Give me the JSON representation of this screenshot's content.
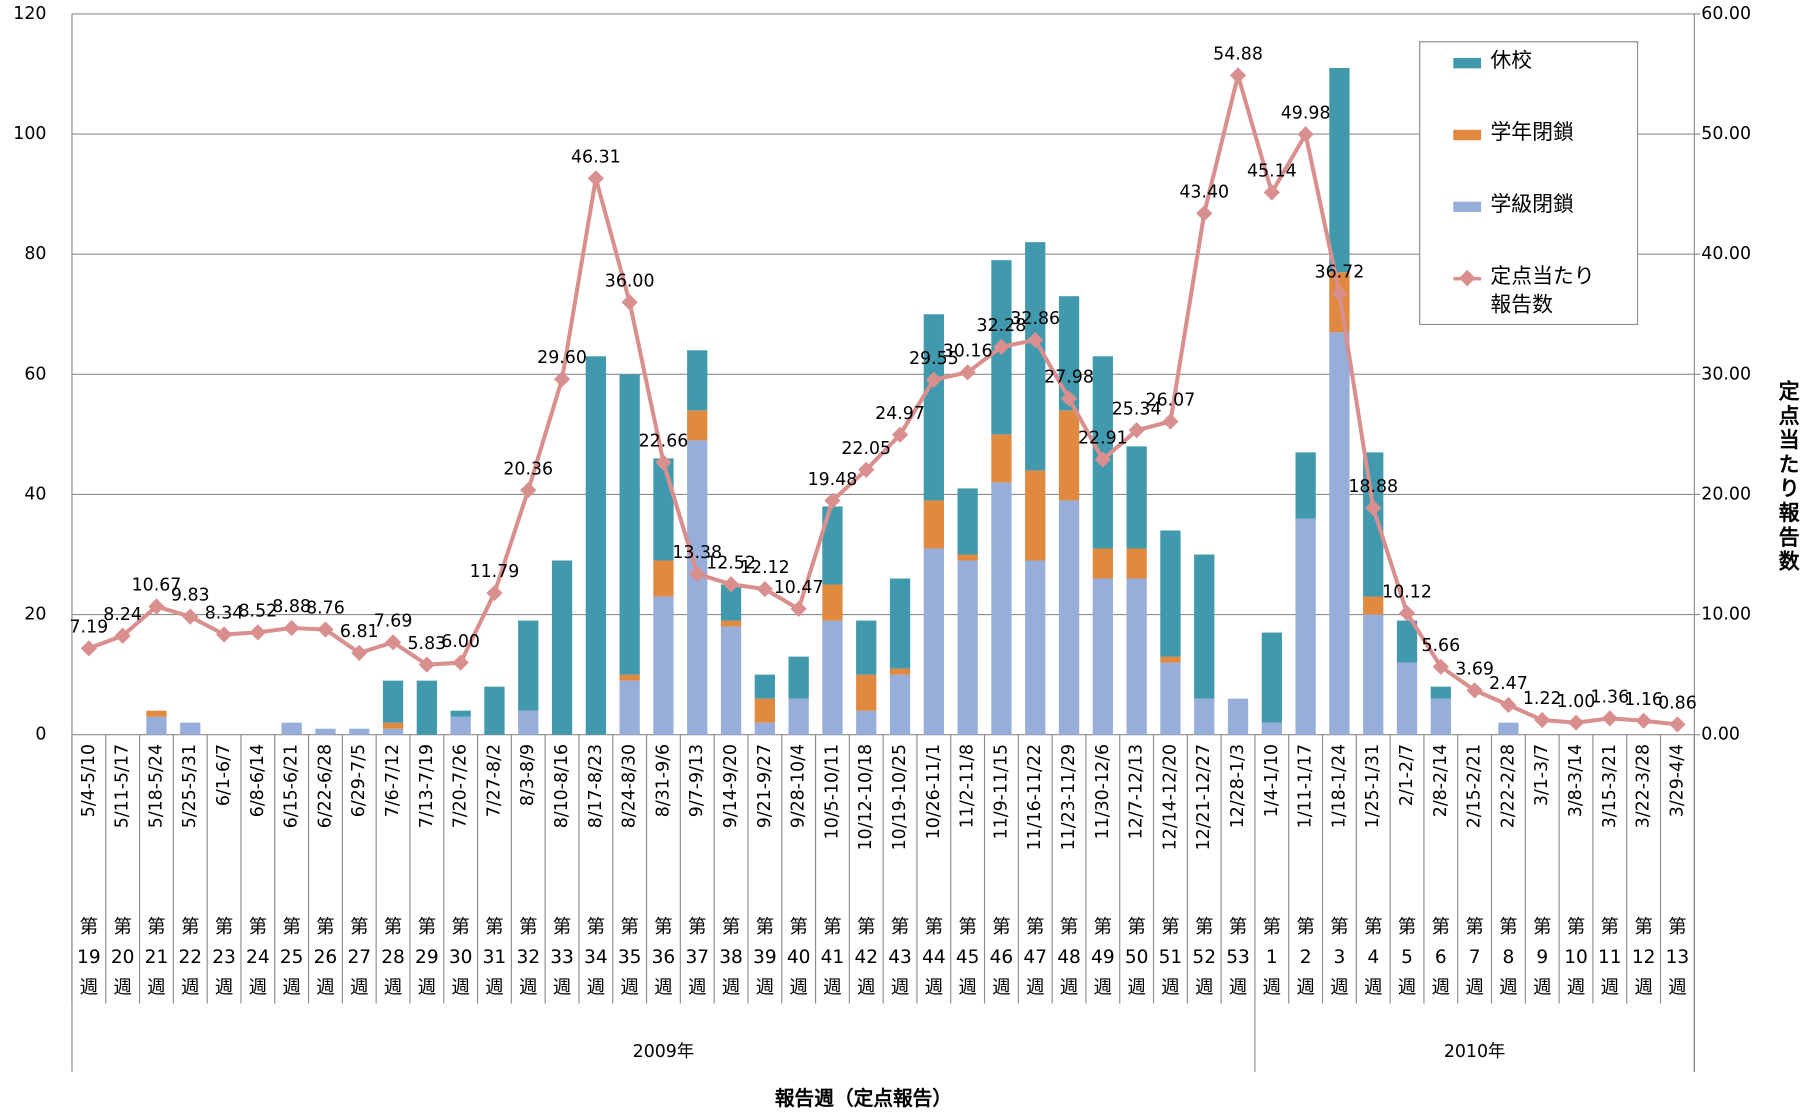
{
  "chart_data": {
    "type": "bar_line",
    "categories": [
      "5/4-5/10",
      "5/11-5/17",
      "5/18-5/24",
      "5/25-5/31",
      "6/1-6/7",
      "6/8-6/14",
      "6/15-6/21",
      "6/22-6/28",
      "6/29-7/5",
      "7/6-7/12",
      "7/13-7/19",
      "7/20-7/26",
      "7/27-8/2",
      "8/3-8/9",
      "8/10-8/16",
      "8/17-8/23",
      "8/24-8/30",
      "8/31-9/6",
      "9/7-9/13",
      "9/14-9/20",
      "9/21-9/27",
      "9/28-10/4",
      "10/5-10/11",
      "10/12-10/18",
      "10/19-10/25",
      "10/26-11/1",
      "11/2-11/8",
      "11/9-11/15",
      "11/16-11/22",
      "11/23-11/29",
      "11/30-12/6",
      "12/7-12/13",
      "12/14-12/20",
      "12/21-12/27",
      "12/28-1/3",
      "1/4-1/10",
      "1/11-1/17",
      "1/18-1/24",
      "1/25-1/31",
      "2/1-2/7",
      "2/8-2/14",
      "2/15-2/21",
      "2/22-2/28",
      "3/1-3/7",
      "3/8-3/14",
      "3/15-3/21",
      "3/22-3/28",
      "3/29-4/4"
    ],
    "weeks": [
      "第19週",
      "第20週",
      "第21週",
      "第22週",
      "第23週",
      "第24週",
      "第25週",
      "第26週",
      "第27週",
      "第28週",
      "第29週",
      "第30週",
      "第31週",
      "第32週",
      "第33週",
      "第34週",
      "第35週",
      "第36週",
      "第37週",
      "第38週",
      "第39週",
      "第40週",
      "第41週",
      "第42週",
      "第43週",
      "第44週",
      "第45週",
      "第46週",
      "第47週",
      "第48週",
      "第49週",
      "第50週",
      "第51週",
      "第52週",
      "第53週",
      "第1週",
      "第2週",
      "第3週",
      "第4週",
      "第5週",
      "第6週",
      "第7週",
      "第8週",
      "第9週",
      "第10週",
      "第11週",
      "第12週",
      "第13週"
    ],
    "x_groups": [
      "2009年",
      "2010年"
    ],
    "xlabel": "報告週（定点報告）",
    "y2label": "定点当たり報告数",
    "ylim": [
      0,
      120
    ],
    "yticks": [
      0,
      20,
      40,
      60,
      80,
      100,
      120
    ],
    "y2lim": [
      0,
      60
    ],
    "y2ticks": [
      {
        "value": 0,
        "label": "0.00"
      },
      {
        "value": 10,
        "label": "10.00"
      },
      {
        "value": 20,
        "label": "20.00"
      },
      {
        "value": 30,
        "label": "30.00"
      },
      {
        "value": 40,
        "label": "40.00"
      },
      {
        "value": 50,
        "label": "50.00"
      },
      {
        "value": 60,
        "label": "60.00"
      }
    ],
    "grid": true,
    "legend": "upper right",
    "series": [
      {
        "name": "休校",
        "type": "bar",
        "color": "#4199ae",
        "values": [
          0,
          0,
          0,
          0,
          0,
          0,
          0,
          0,
          0,
          7,
          9,
          1,
          8,
          15,
          29,
          63,
          50,
          17,
          10,
          6,
          4,
          7,
          13,
          9,
          15,
          31,
          11,
          29,
          38,
          19,
          32,
          17,
          21,
          24,
          0,
          15,
          11,
          34,
          24,
          7,
          2,
          0,
          0,
          0,
          0,
          0,
          0,
          0
        ]
      },
      {
        "name": "学年閉鎖",
        "type": "bar",
        "color": "#e0893f",
        "values": [
          0,
          0,
          1,
          0,
          0,
          0,
          0,
          0,
          0,
          1,
          0,
          0,
          0,
          0,
          0,
          0,
          1,
          6,
          5,
          1,
          4,
          0,
          6,
          6,
          1,
          8,
          1,
          8,
          15,
          15,
          5,
          5,
          1,
          0,
          0,
          0,
          0,
          10,
          3,
          0,
          0,
          0,
          0,
          0,
          0,
          0,
          0,
          0
        ]
      },
      {
        "name": "学級閉鎖",
        "type": "bar",
        "color": "#98aeda",
        "values": [
          0,
          0,
          3,
          2,
          0,
          0,
          2,
          1,
          1,
          1,
          0,
          3,
          0,
          4,
          0,
          0,
          9,
          23,
          49,
          18,
          2,
          6,
          19,
          4,
          10,
          31,
          29,
          42,
          29,
          39,
          26,
          26,
          12,
          6,
          6,
          2,
          36,
          67,
          20,
          12,
          6,
          0,
          2,
          0,
          0,
          0,
          0,
          0
        ]
      },
      {
        "name": "定点当たり報告数",
        "type": "line",
        "axis": "y2",
        "color": "#da8f8f",
        "values": [
          7.19,
          8.24,
          10.67,
          9.83,
          8.34,
          8.52,
          8.88,
          8.76,
          6.81,
          7.69,
          5.83,
          6.0,
          11.79,
          20.36,
          29.6,
          46.31,
          36.0,
          22.66,
          13.38,
          12.52,
          12.12,
          10.47,
          19.48,
          22.05,
          24.97,
          29.55,
          30.16,
          32.28,
          32.86,
          27.98,
          22.91,
          25.34,
          26.07,
          43.4,
          54.88,
          45.14,
          49.98,
          36.72,
          18.88,
          10.12,
          5.66,
          3.69,
          2.47,
          1.22,
          1.0,
          1.36,
          1.16,
          0.86
        ],
        "value_labels": [
          "7.19",
          "8.24",
          "10.67",
          "9.83",
          "8.34",
          "8.52",
          "8.88",
          "8.76",
          "6.81",
          "7.69",
          "5.83",
          "6.00",
          "11.79",
          "20.36",
          "29.60",
          "46.31",
          "36.00",
          "22.66",
          "13.38",
          "12.52",
          "12.12",
          "10.47",
          "19.48",
          "22.05",
          "24.97",
          "29.55",
          "30.16",
          "32.28",
          "32.86",
          "27.98",
          "22.91",
          "25.34",
          "26.07",
          "43.40",
          "54.88",
          "45.14",
          "49.98",
          "36.72",
          "18.88",
          "10.12",
          "5.66",
          "3.69",
          "2.47",
          "1.22",
          "1.00",
          "1.36",
          "1.16",
          "0.86"
        ]
      }
    ]
  }
}
